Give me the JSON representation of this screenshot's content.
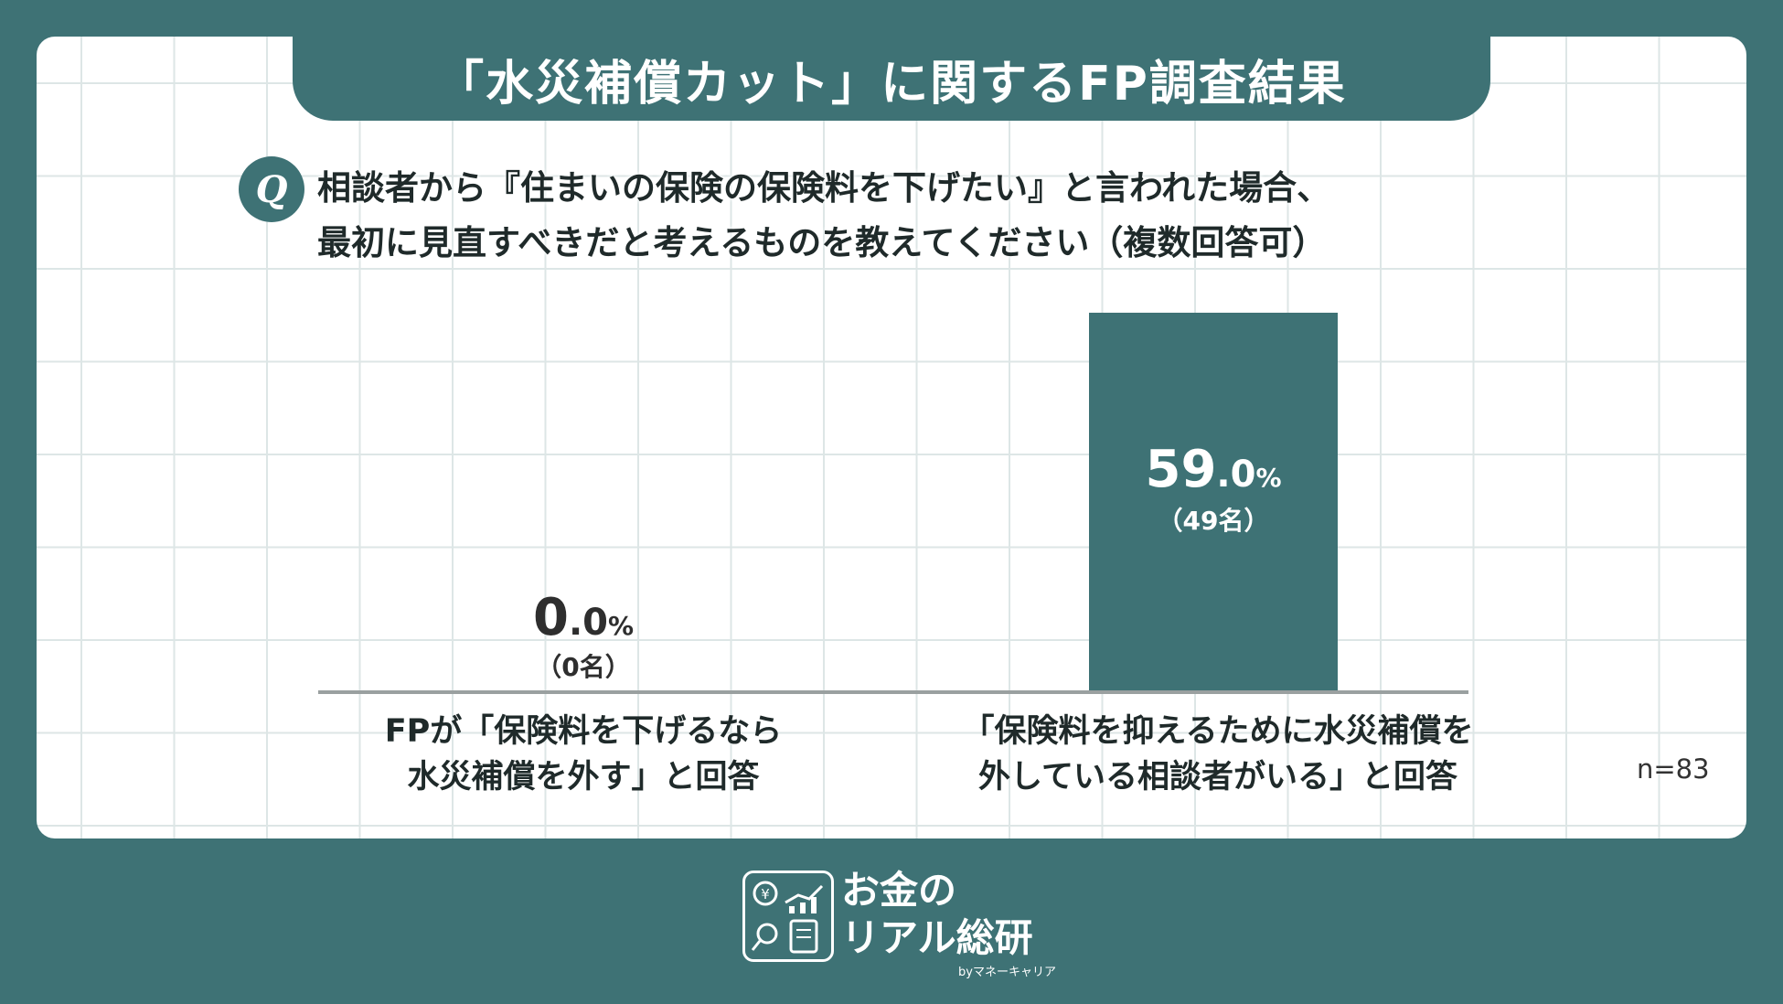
{
  "title": "「水災補償カット」に関するFP調査結果",
  "question": {
    "icon": "q-icon",
    "badge": "Q",
    "line1": "相談者から『住まいの保険の保険料を下げたい』と言われた場合、",
    "line2": "最初に見直すべきだと考えるものを教えてください（複数回答可）"
  },
  "chart_data": {
    "type": "bar",
    "categories": [
      "FPが「保険料を下げるなら水災補償を外す」と回答",
      "「保険料を抑えるために水災補償を外している相談者がいる」と回答"
    ],
    "category_lines": [
      [
        "FPが「保険料を下げるなら",
        "水災補償を外す」と回答"
      ],
      [
        "「保険料を抑えるために水災補償を",
        "外している相談者がいる」と回答"
      ]
    ],
    "values": [
      0.0,
      59.0
    ],
    "value_int": [
      "0",
      "59"
    ],
    "value_dec": [
      ".0",
      ".0"
    ],
    "value_unit": "%",
    "counts": [
      "（0名）",
      "（49名）"
    ],
    "ylim": [
      0,
      59.0
    ],
    "bar_color": "#3e7275"
  },
  "n_label": "n=83",
  "brand": {
    "line1": "お金の",
    "line2": "リアル総研",
    "sub": "byマネーキャリア"
  }
}
